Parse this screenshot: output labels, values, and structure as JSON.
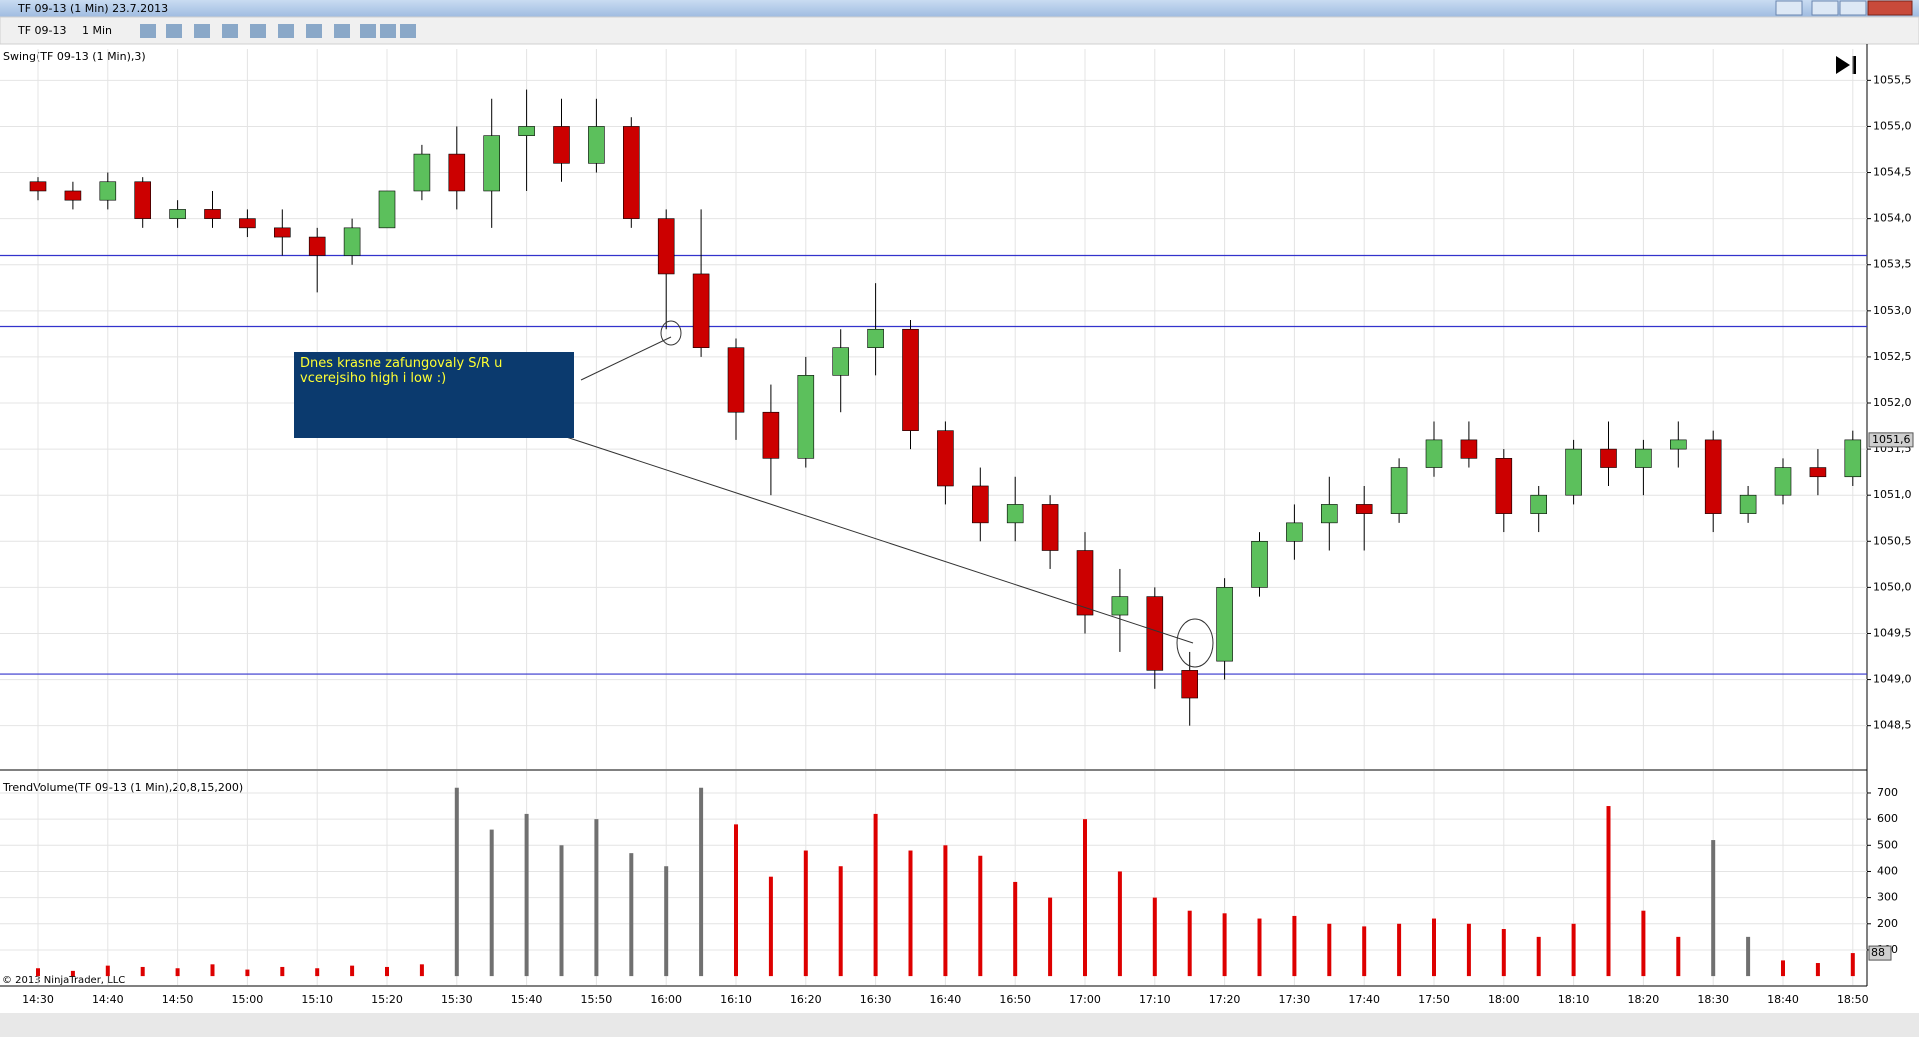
{
  "window": {
    "title": "TF 09-13 (1 Min)  23.7.2013"
  },
  "toolbar": {
    "instrument": "TF 09-13",
    "interval": "1 Min"
  },
  "chart_data": [
    {
      "type": "candlestick",
      "title": "Swing(TF 09-13 (1 Min),3)",
      "open": [
        1054.4,
        1054.3,
        1054.2,
        1054.4,
        1054.0,
        1054.1,
        1054.0,
        1053.9,
        1053.8,
        1053.6,
        1053.9,
        1054.3,
        1054.7,
        1054.3,
        1054.9,
        1055.0,
        1054.6,
        1055.0,
        1054.0,
        1053.4,
        1052.6,
        1051.9,
        1051.4,
        1052.3,
        1052.6,
        1052.8,
        1051.7,
        1051.1,
        1050.7,
        1050.9,
        1050.4,
        1049.7,
        1049.9,
        1049.1,
        1049.2,
        1050.0,
        1050.5,
        1050.7,
        1050.9,
        1050.8,
        1051.3,
        1051.6,
        1051.4,
        1050.8,
        1051.0,
        1051.5,
        1051.3,
        1051.5,
        1051.6,
        1050.8,
        1051.0,
        1051.3,
        1051.2
      ],
      "high": [
        1054.45,
        1054.4,
        1054.5,
        1054.45,
        1054.2,
        1054.3,
        1054.1,
        1054.1,
        1053.9,
        1054.0,
        1054.3,
        1054.8,
        1055.0,
        1055.3,
        1055.4,
        1055.3,
        1055.3,
        1055.1,
        1054.1,
        1054.1,
        1052.7,
        1052.2,
        1052.5,
        1052.8,
        1053.3,
        1052.9,
        1051.8,
        1051.3,
        1051.2,
        1051.0,
        1050.6,
        1050.2,
        1050.0,
        1049.3,
        1050.1,
        1050.6,
        1050.9,
        1051.2,
        1051.1,
        1051.4,
        1051.8,
        1051.8,
        1051.5,
        1051.1,
        1051.6,
        1051.8,
        1051.6,
        1051.8,
        1051.7,
        1051.1,
        1051.4,
        1051.5,
        1051.7
      ],
      "low": [
        1054.2,
        1054.1,
        1054.1,
        1053.9,
        1053.9,
        1053.9,
        1053.8,
        1053.6,
        1053.2,
        1053.5,
        1053.9,
        1054.2,
        1054.1,
        1053.9,
        1054.3,
        1054.4,
        1054.5,
        1053.9,
        1052.8,
        1052.5,
        1051.6,
        1051.0,
        1051.3,
        1051.9,
        1052.3,
        1051.5,
        1050.9,
        1050.5,
        1050.5,
        1050.2,
        1049.5,
        1049.3,
        1048.9,
        1048.5,
        1049.0,
        1049.9,
        1050.3,
        1050.4,
        1050.4,
        1050.7,
        1051.2,
        1051.3,
        1050.6,
        1050.6,
        1050.9,
        1051.1,
        1051.0,
        1051.3,
        1050.6,
        1050.7,
        1050.9,
        1051.0,
        1051.1
      ],
      "close": [
        1054.3,
        1054.2,
        1054.4,
        1054.0,
        1054.1,
        1054.0,
        1053.9,
        1053.8,
        1053.6,
        1053.9,
        1054.3,
        1054.7,
        1054.3,
        1054.9,
        1055.0,
        1054.6,
        1055.0,
        1054.0,
        1053.4,
        1052.6,
        1051.9,
        1051.4,
        1052.3,
        1052.6,
        1052.8,
        1051.7,
        1051.1,
        1050.7,
        1050.9,
        1050.4,
        1049.7,
        1049.9,
        1049.1,
        1048.8,
        1050.0,
        1050.5,
        1050.7,
        1050.9,
        1050.8,
        1051.3,
        1051.6,
        1051.4,
        1050.8,
        1051.0,
        1051.5,
        1051.3,
        1051.5,
        1051.6,
        1050.8,
        1051.0,
        1051.3,
        1051.2,
        1051.6
      ],
      "up_color": "#5cc05c",
      "down_color": "#cc0000",
      "ylim": [
        1048.03,
        1055.84
      ],
      "yticks": [
        {
          "value": 1048.5,
          "label": "1048,5"
        },
        {
          "value": 1049,
          "label": "1049,0"
        },
        {
          "value": 1049.5,
          "label": "1049,5"
        },
        {
          "value": 1050,
          "label": "1050,0"
        },
        {
          "value": 1050.5,
          "label": "1050,5"
        },
        {
          "value": 1051,
          "label": "1051,0"
        },
        {
          "value": 1051.5,
          "label": "1051,5"
        },
        {
          "value": 1052,
          "label": "1052,0"
        },
        {
          "value": 1052.5,
          "label": "1052,5"
        },
        {
          "value": 1053,
          "label": "1053,0"
        },
        {
          "value": 1053.5,
          "label": "1053,5"
        },
        {
          "value": 1054,
          "label": "1054,0"
        },
        {
          "value": 1054.5,
          "label": "1054,5"
        },
        {
          "value": 1055,
          "label": "1055,0"
        },
        {
          "value": 1055.5,
          "label": "1055,5"
        }
      ],
      "last_price": {
        "value": 1051.6,
        "label": "1051,6"
      },
      "sr_levels": [
        1053.6,
        1052.83,
        1049.06
      ],
      "sr_color": "#3333cc",
      "annotation": "Dnes krasne zafungovaly S/R u vcerejsiho high i low :)"
    },
    {
      "type": "bar",
      "title": "TrendVolume(TF 09-13 (1 Min),20,8,15,200)",
      "footer": "© 2013 NinjaTrader, LLC",
      "categories": [
        "14:30",
        null,
        "14:40",
        null,
        "14:50",
        null,
        "15:00",
        null,
        "15:10",
        null,
        "15:20",
        null,
        "15:30",
        null,
        "15:40",
        null,
        "15:50",
        null,
        "16:00",
        null,
        "16:10",
        null,
        "16:20",
        null,
        "16:30",
        null,
        "16:40",
        null,
        "16:50",
        null,
        "17:00",
        null,
        "17:10",
        null,
        "17:20",
        null,
        "17:30",
        null,
        "17:40",
        null,
        "17:50",
        null,
        "18:00",
        null,
        "18:10",
        null,
        "18:20",
        null,
        "18:30",
        null,
        "18:40",
        null,
        "18:50"
      ],
      "values": [
        30,
        20,
        40,
        35,
        30,
        45,
        25,
        35,
        30,
        40,
        35,
        45,
        720,
        560,
        620,
        500,
        600,
        470,
        420,
        720,
        580,
        380,
        480,
        420,
        620,
        480,
        500,
        460,
        360,
        300,
        600,
        400,
        300,
        250,
        240,
        220,
        230,
        200,
        190,
        200,
        220,
        200,
        180,
        150,
        200,
        650,
        250,
        150,
        520,
        150,
        60,
        50,
        88
      ],
      "bar_colors": [
        "#dd0000",
        "#dd0000",
        "#dd0000",
        "#dd0000",
        "#dd0000",
        "#dd0000",
        "#dd0000",
        "#dd0000",
        "#dd0000",
        "#dd0000",
        "#dd0000",
        "#dd0000",
        "#707070",
        "#707070",
        "#707070",
        "#707070",
        "#707070",
        "#707070",
        "#707070",
        "#707070",
        "#dd0000",
        "#dd0000",
        "#dd0000",
        "#dd0000",
        "#dd0000",
        "#dd0000",
        "#dd0000",
        "#dd0000",
        "#dd0000",
        "#dd0000",
        "#dd0000",
        "#dd0000",
        "#dd0000",
        "#dd0000",
        "#dd0000",
        "#dd0000",
        "#dd0000",
        "#dd0000",
        "#dd0000",
        "#dd0000",
        "#dd0000",
        "#dd0000",
        "#dd0000",
        "#dd0000",
        "#dd0000",
        "#dd0000",
        "#dd0000",
        "#dd0000",
        "#707070",
        "#707070",
        "#dd0000",
        "#dd0000",
        "#dd0000"
      ],
      "ylim": [
        -34,
        784
      ],
      "yticks": [
        100,
        200,
        300,
        400,
        500,
        600,
        700
      ]
    }
  ]
}
